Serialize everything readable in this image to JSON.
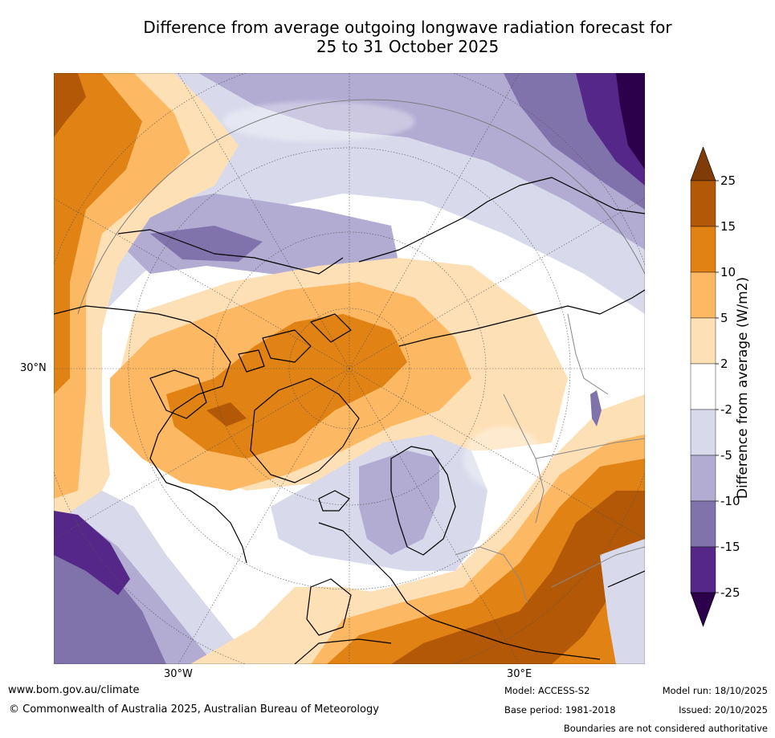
{
  "title": {
    "line1": "Difference from average outgoing longwave radiation forecast for",
    "line2": "25 to 31 October 2025"
  },
  "map": {
    "lat_label": "30°N",
    "lon_labels": {
      "west": "30°W",
      "east": "30°E"
    }
  },
  "colorbar": {
    "title": "Difference from average (W/m2)",
    "levels": [
      "25",
      "15",
      "10",
      "5",
      "2",
      "-2",
      "-5",
      "-10",
      "-15",
      "-25"
    ],
    "colors": {
      "over": "#7f3b08",
      "b15_25": "#b35806",
      "b10_15": "#e08214",
      "b5_10": "#fdb863",
      "b2_5": "#fee0b6",
      "neutral": "#ffffff",
      "m2_m5": "#d8daeb",
      "m5_m10": "#b2abd2",
      "m10_m15": "#8073ac",
      "m15_m25": "#542788",
      "under": "#2d004b"
    }
  },
  "footer": {
    "url": "www.bom.gov.au/climate",
    "copyright": "© Commonwealth of Australia 2025, Australian Bureau of Meteorology",
    "model": "Model: ACCESS-S2",
    "base_period": "Base period: 1981-2018",
    "model_run": "Model run: 18/10/2025",
    "issued": "Issued: 20/10/2025",
    "boundaries": "Boundaries are not considered authoritative"
  }
}
